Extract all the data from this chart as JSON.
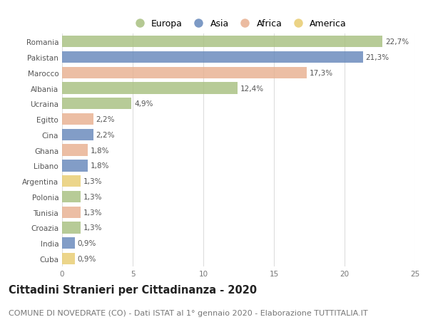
{
  "countries": [
    "Romania",
    "Pakistan",
    "Marocco",
    "Albania",
    "Ucraina",
    "Egitto",
    "Cina",
    "Ghana",
    "Libano",
    "Argentina",
    "Polonia",
    "Tunisia",
    "Croazia",
    "India",
    "Cuba"
  ],
  "values": [
    22.7,
    21.3,
    17.3,
    12.4,
    4.9,
    2.2,
    2.2,
    1.8,
    1.8,
    1.3,
    1.3,
    1.3,
    1.3,
    0.9,
    0.9
  ],
  "labels": [
    "22,7%",
    "21,3%",
    "17,3%",
    "12,4%",
    "4,9%",
    "2,2%",
    "2,2%",
    "1,8%",
    "1,8%",
    "1,3%",
    "1,3%",
    "1,3%",
    "1,3%",
    "0,9%",
    "0,9%"
  ],
  "continents": [
    "Europa",
    "Asia",
    "Africa",
    "Europa",
    "Europa",
    "Africa",
    "Asia",
    "Africa",
    "Asia",
    "America",
    "Europa",
    "Africa",
    "Europa",
    "Asia",
    "America"
  ],
  "colors": {
    "Europa": "#a8c080",
    "Asia": "#6688bb",
    "Africa": "#e8b090",
    "America": "#e8cc70"
  },
  "legend_order": [
    "Europa",
    "Asia",
    "Africa",
    "America"
  ],
  "title": "Cittadini Stranieri per Cittadinanza - 2020",
  "subtitle": "COMUNE DI NOVEDRATE (CO) - Dati ISTAT al 1° gennaio 2020 - Elaborazione TUTTITALIA.IT",
  "xlim": [
    0,
    25
  ],
  "xticks": [
    0,
    5,
    10,
    15,
    20,
    25
  ],
  "background_color": "#ffffff",
  "grid_color": "#dddddd",
  "bar_height": 0.75,
  "title_fontsize": 10.5,
  "subtitle_fontsize": 8,
  "label_fontsize": 7.5,
  "tick_fontsize": 7.5
}
